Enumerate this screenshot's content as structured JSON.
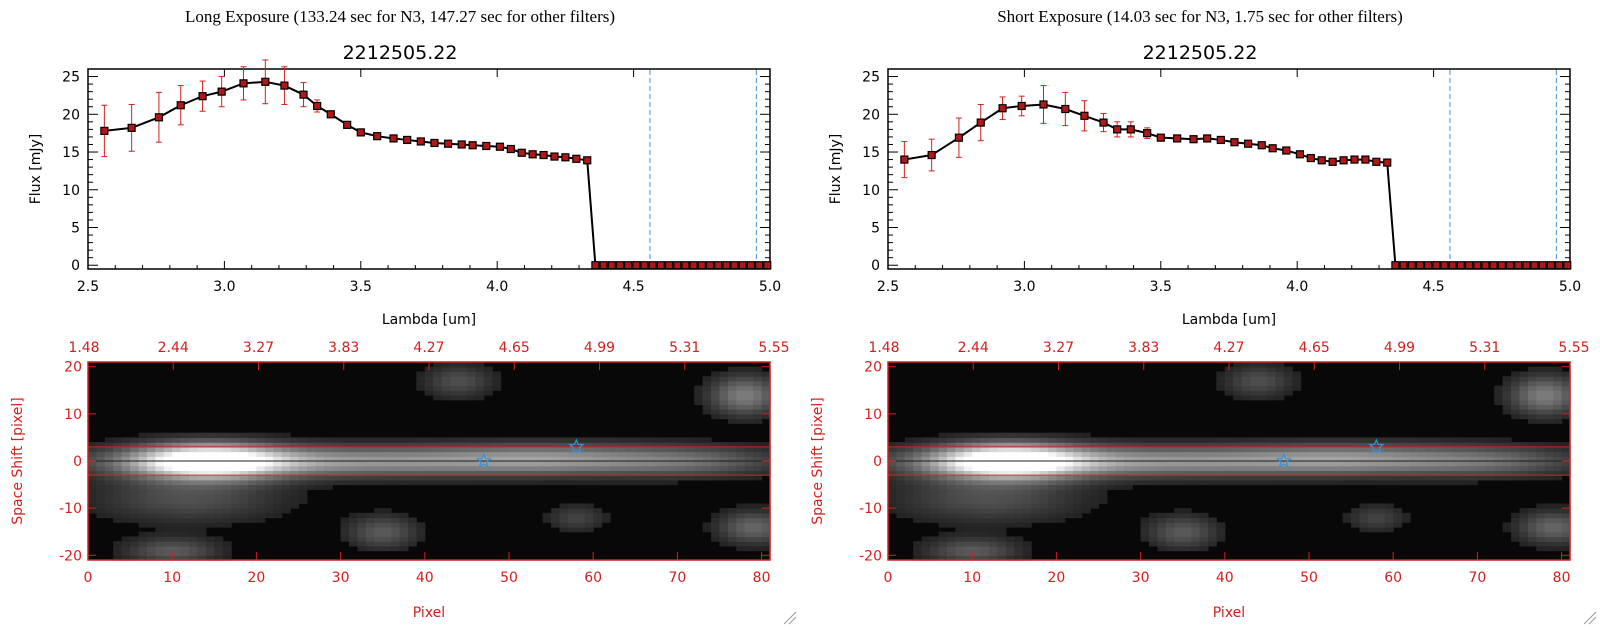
{
  "colors": {
    "red": "#d42020",
    "blue": "#3a8fd8",
    "black": "#000000",
    "marker": "#b01818"
  },
  "panels": [
    {
      "panel_title": "Long Exposure (133.24 sec for N3, 147.27 sec for other filters)",
      "spectrum": {
        "title": "2212505.22",
        "xlabel": "Lambda [um]",
        "ylabel": "Flux [mJy]",
        "xticks": [
          "2.5",
          "3.0",
          "3.5",
          "4.0",
          "4.5",
          "5.0"
        ],
        "yticks": [
          "0",
          "5",
          "10",
          "15",
          "20",
          "25"
        ]
      },
      "image": {
        "xlabel": "Pixel",
        "ylabel": "Space Shift [pixel]",
        "xticks": [
          "0",
          "10",
          "20",
          "30",
          "40",
          "50",
          "60",
          "70",
          "80"
        ],
        "yticks": [
          "20",
          "10",
          "0",
          "-10",
          "-20"
        ],
        "top_ticks": [
          "1.48",
          "2.44",
          "3.27",
          "3.83",
          "4.27",
          "4.65",
          "4.99",
          "5.31",
          "5.55"
        ]
      }
    },
    {
      "panel_title": "Short Exposure (14.03 sec for N3, 1.75 sec for other filters)",
      "spectrum": {
        "title": "2212505.22",
        "xlabel": "Lambda [um]",
        "ylabel": "Flux [mJy]",
        "xticks": [
          "2.5",
          "3.0",
          "3.5",
          "4.0",
          "4.5",
          "5.0"
        ],
        "yticks": [
          "0",
          "5",
          "10",
          "15",
          "20",
          "25"
        ]
      },
      "image": {
        "xlabel": "Pixel",
        "ylabel": "Space Shift [pixel]",
        "xticks": [
          "0",
          "10",
          "20",
          "30",
          "40",
          "50",
          "60",
          "70",
          "80"
        ],
        "yticks": [
          "20",
          "10",
          "0",
          "-10",
          "-20"
        ],
        "top_ticks": [
          "1.48",
          "2.44",
          "3.27",
          "3.83",
          "4.27",
          "4.65",
          "4.99",
          "5.31",
          "5.55"
        ]
      }
    }
  ],
  "chart_data": [
    {
      "type": "line",
      "panel": "Long Exposure",
      "title": "2212505.22",
      "xlabel": "Lambda [um]",
      "ylabel": "Flux [mJy]",
      "xlim": [
        2.5,
        5.0
      ],
      "ylim": [
        -0.5,
        26
      ],
      "series": [
        {
          "name": "flux",
          "x": [
            2.56,
            2.66,
            2.76,
            2.84,
            2.92,
            2.99,
            3.07,
            3.15,
            3.22,
            3.29,
            3.34,
            3.39,
            3.45,
            3.5,
            3.56,
            3.62,
            3.67,
            3.72,
            3.77,
            3.82,
            3.87,
            3.91,
            3.96,
            4.01,
            4.05,
            4.09,
            4.13,
            4.17,
            4.21,
            4.25,
            4.29,
            4.33,
            4.36,
            4.39,
            4.42,
            4.45,
            4.48,
            4.51,
            4.54,
            4.57,
            4.6,
            4.63,
            4.66,
            4.69,
            4.72,
            4.75,
            4.78,
            4.81,
            4.84,
            4.87,
            4.9,
            4.93,
            4.96,
            4.99
          ],
          "y": [
            17.8,
            18.2,
            19.6,
            21.2,
            22.4,
            23.0,
            24.1,
            24.3,
            23.8,
            22.6,
            21.1,
            20.0,
            18.6,
            17.6,
            17.1,
            16.8,
            16.6,
            16.4,
            16.2,
            16.1,
            16.0,
            15.9,
            15.8,
            15.7,
            15.4,
            14.9,
            14.7,
            14.6,
            14.4,
            14.3,
            14.1,
            13.9,
            0,
            0,
            0,
            0,
            0,
            0,
            0,
            0,
            0,
            0,
            0,
            0,
            0,
            0,
            0,
            0,
            0,
            0,
            0,
            0,
            0,
            0
          ],
          "yerr": [
            3.4,
            3.1,
            3.3,
            2.6,
            2.0,
            2.0,
            2.2,
            2.9,
            2.5,
            1.6,
            0.8,
            0.4,
            0.3,
            0.2,
            0.2,
            0.2,
            0.2,
            0.2,
            0.2,
            0.2,
            0.2,
            0.2,
            0.2,
            0.2,
            0.2,
            0.2,
            0.2,
            0.2,
            0.2,
            0.2,
            0.2,
            0.2,
            0,
            0,
            0,
            0,
            0,
            0,
            0,
            0,
            0,
            0,
            0,
            0,
            0,
            0,
            0,
            0,
            0,
            0,
            0,
            0,
            0,
            0
          ]
        }
      ],
      "vlines_um": [
        4.56,
        4.95
      ]
    },
    {
      "type": "line",
      "panel": "Short Exposure",
      "title": "2212505.22",
      "xlabel": "Lambda [um]",
      "ylabel": "Flux [mJy]",
      "xlim": [
        2.5,
        5.0
      ],
      "ylim": [
        -0.5,
        26
      ],
      "series": [
        {
          "name": "flux",
          "x": [
            2.56,
            2.66,
            2.76,
            2.84,
            2.92,
            2.99,
            3.07,
            3.15,
            3.22,
            3.29,
            3.34,
            3.39,
            3.45,
            3.5,
            3.56,
            3.62,
            3.67,
            3.72,
            3.77,
            3.82,
            3.87,
            3.91,
            3.96,
            4.01,
            4.05,
            4.09,
            4.13,
            4.17,
            4.21,
            4.25,
            4.29,
            4.33,
            4.36,
            4.39,
            4.42,
            4.45,
            4.48,
            4.51,
            4.54,
            4.57,
            4.6,
            4.63,
            4.66,
            4.69,
            4.72,
            4.75,
            4.78,
            4.81,
            4.84,
            4.87,
            4.9,
            4.93,
            4.96,
            4.99
          ],
          "y": [
            14.0,
            14.6,
            16.9,
            18.9,
            20.8,
            21.1,
            21.3,
            20.7,
            19.8,
            18.9,
            18.0,
            18.0,
            17.5,
            16.9,
            16.8,
            16.7,
            16.8,
            16.6,
            16.3,
            16.1,
            15.9,
            15.5,
            15.2,
            14.7,
            14.2,
            13.9,
            13.7,
            13.9,
            14.0,
            14.0,
            13.7,
            13.6,
            0,
            0,
            0,
            0,
            0,
            0,
            0,
            0,
            0,
            0,
            0,
            0,
            0,
            0,
            0,
            0,
            0,
            0,
            0,
            0,
            0,
            0
          ],
          "yerr": [
            2.4,
            2.1,
            2.6,
            2.4,
            1.5,
            1.3,
            2.5,
            2.2,
            2.0,
            1.2,
            1.0,
            1.0,
            0.7,
            0.4,
            0.4,
            0.4,
            0.4,
            0.4,
            0.4,
            0.4,
            0.4,
            0.4,
            0.4,
            0.4,
            0.4,
            0.4,
            0.4,
            0.4,
            0.4,
            0.4,
            0.4,
            0.4,
            0,
            0,
            0,
            0,
            0,
            0,
            0,
            0,
            0,
            0,
            0,
            0,
            0,
            0,
            0,
            0,
            0,
            0,
            0,
            0,
            0,
            0
          ]
        }
      ],
      "vlines_um": [
        4.56,
        4.95
      ]
    },
    {
      "type": "heatmap",
      "panel": "Long Exposure",
      "xlabel": "Pixel",
      "ylabel": "Space Shift [pixel]",
      "xlim": [
        0,
        81
      ],
      "ylim": [
        -21,
        21
      ],
      "aperture_lines": [
        3,
        0,
        -3
      ],
      "star_markers": [
        {
          "x": 47,
          "y": 0
        },
        {
          "x": 58,
          "y": 3
        }
      ],
      "sources": [
        {
          "x": 14,
          "y": 0,
          "sx": 6,
          "sy": 2.6,
          "a": 1.0
        },
        {
          "x": 28,
          "y": 0,
          "sx": 18,
          "sy": 2.3,
          "a": 0.55
        },
        {
          "x": 55,
          "y": 0.5,
          "sx": 10,
          "sy": 2.3,
          "a": 0.4
        },
        {
          "x": 72,
          "y": 0,
          "sx": 8,
          "sy": 2.3,
          "a": 0.3
        },
        {
          "x": 12,
          "y": -8,
          "sx": 8,
          "sy": 3.5,
          "a": 0.25
        },
        {
          "x": 44,
          "y": 17,
          "sx": 3,
          "sy": 2.5,
          "a": 0.25
        },
        {
          "x": 78,
          "y": 14,
          "sx": 3,
          "sy": 3,
          "a": 0.45
        },
        {
          "x": 35,
          "y": -15,
          "sx": 3,
          "sy": 2.5,
          "a": 0.3
        },
        {
          "x": 79,
          "y": -14,
          "sx": 3,
          "sy": 2.5,
          "a": 0.35
        },
        {
          "x": 10,
          "y": -19,
          "sx": 4,
          "sy": 2,
          "a": 0.3
        },
        {
          "x": 58,
          "y": -12,
          "sx": 2.5,
          "sy": 2,
          "a": 0.2
        }
      ]
    },
    {
      "type": "heatmap",
      "panel": "Short Exposure",
      "xlabel": "Pixel",
      "ylabel": "Space Shift [pixel]",
      "xlim": [
        0,
        81
      ],
      "ylim": [
        -21,
        21
      ],
      "aperture_lines": [
        3,
        0,
        -3
      ],
      "star_markers": [
        {
          "x": 47,
          "y": 0
        },
        {
          "x": 58,
          "y": 3
        }
      ],
      "sources": [
        {
          "x": 14,
          "y": 0,
          "sx": 6,
          "sy": 2.6,
          "a": 1.0
        },
        {
          "x": 28,
          "y": 0,
          "sx": 18,
          "sy": 2.3,
          "a": 0.55
        },
        {
          "x": 55,
          "y": 0.5,
          "sx": 10,
          "sy": 2.3,
          "a": 0.4
        },
        {
          "x": 72,
          "y": 0,
          "sx": 8,
          "sy": 2.3,
          "a": 0.3
        },
        {
          "x": 12,
          "y": -8,
          "sx": 8,
          "sy": 3.5,
          "a": 0.25
        },
        {
          "x": 44,
          "y": 17,
          "sx": 3,
          "sy": 2.5,
          "a": 0.25
        },
        {
          "x": 78,
          "y": 14,
          "sx": 3,
          "sy": 3,
          "a": 0.45
        },
        {
          "x": 35,
          "y": -15,
          "sx": 3,
          "sy": 2.5,
          "a": 0.3
        },
        {
          "x": 79,
          "y": -14,
          "sx": 3,
          "sy": 2.5,
          "a": 0.35
        },
        {
          "x": 10,
          "y": -19,
          "sx": 4,
          "sy": 2,
          "a": 0.3
        },
        {
          "x": 58,
          "y": -12,
          "sx": 2.5,
          "sy": 2,
          "a": 0.2
        }
      ]
    }
  ]
}
